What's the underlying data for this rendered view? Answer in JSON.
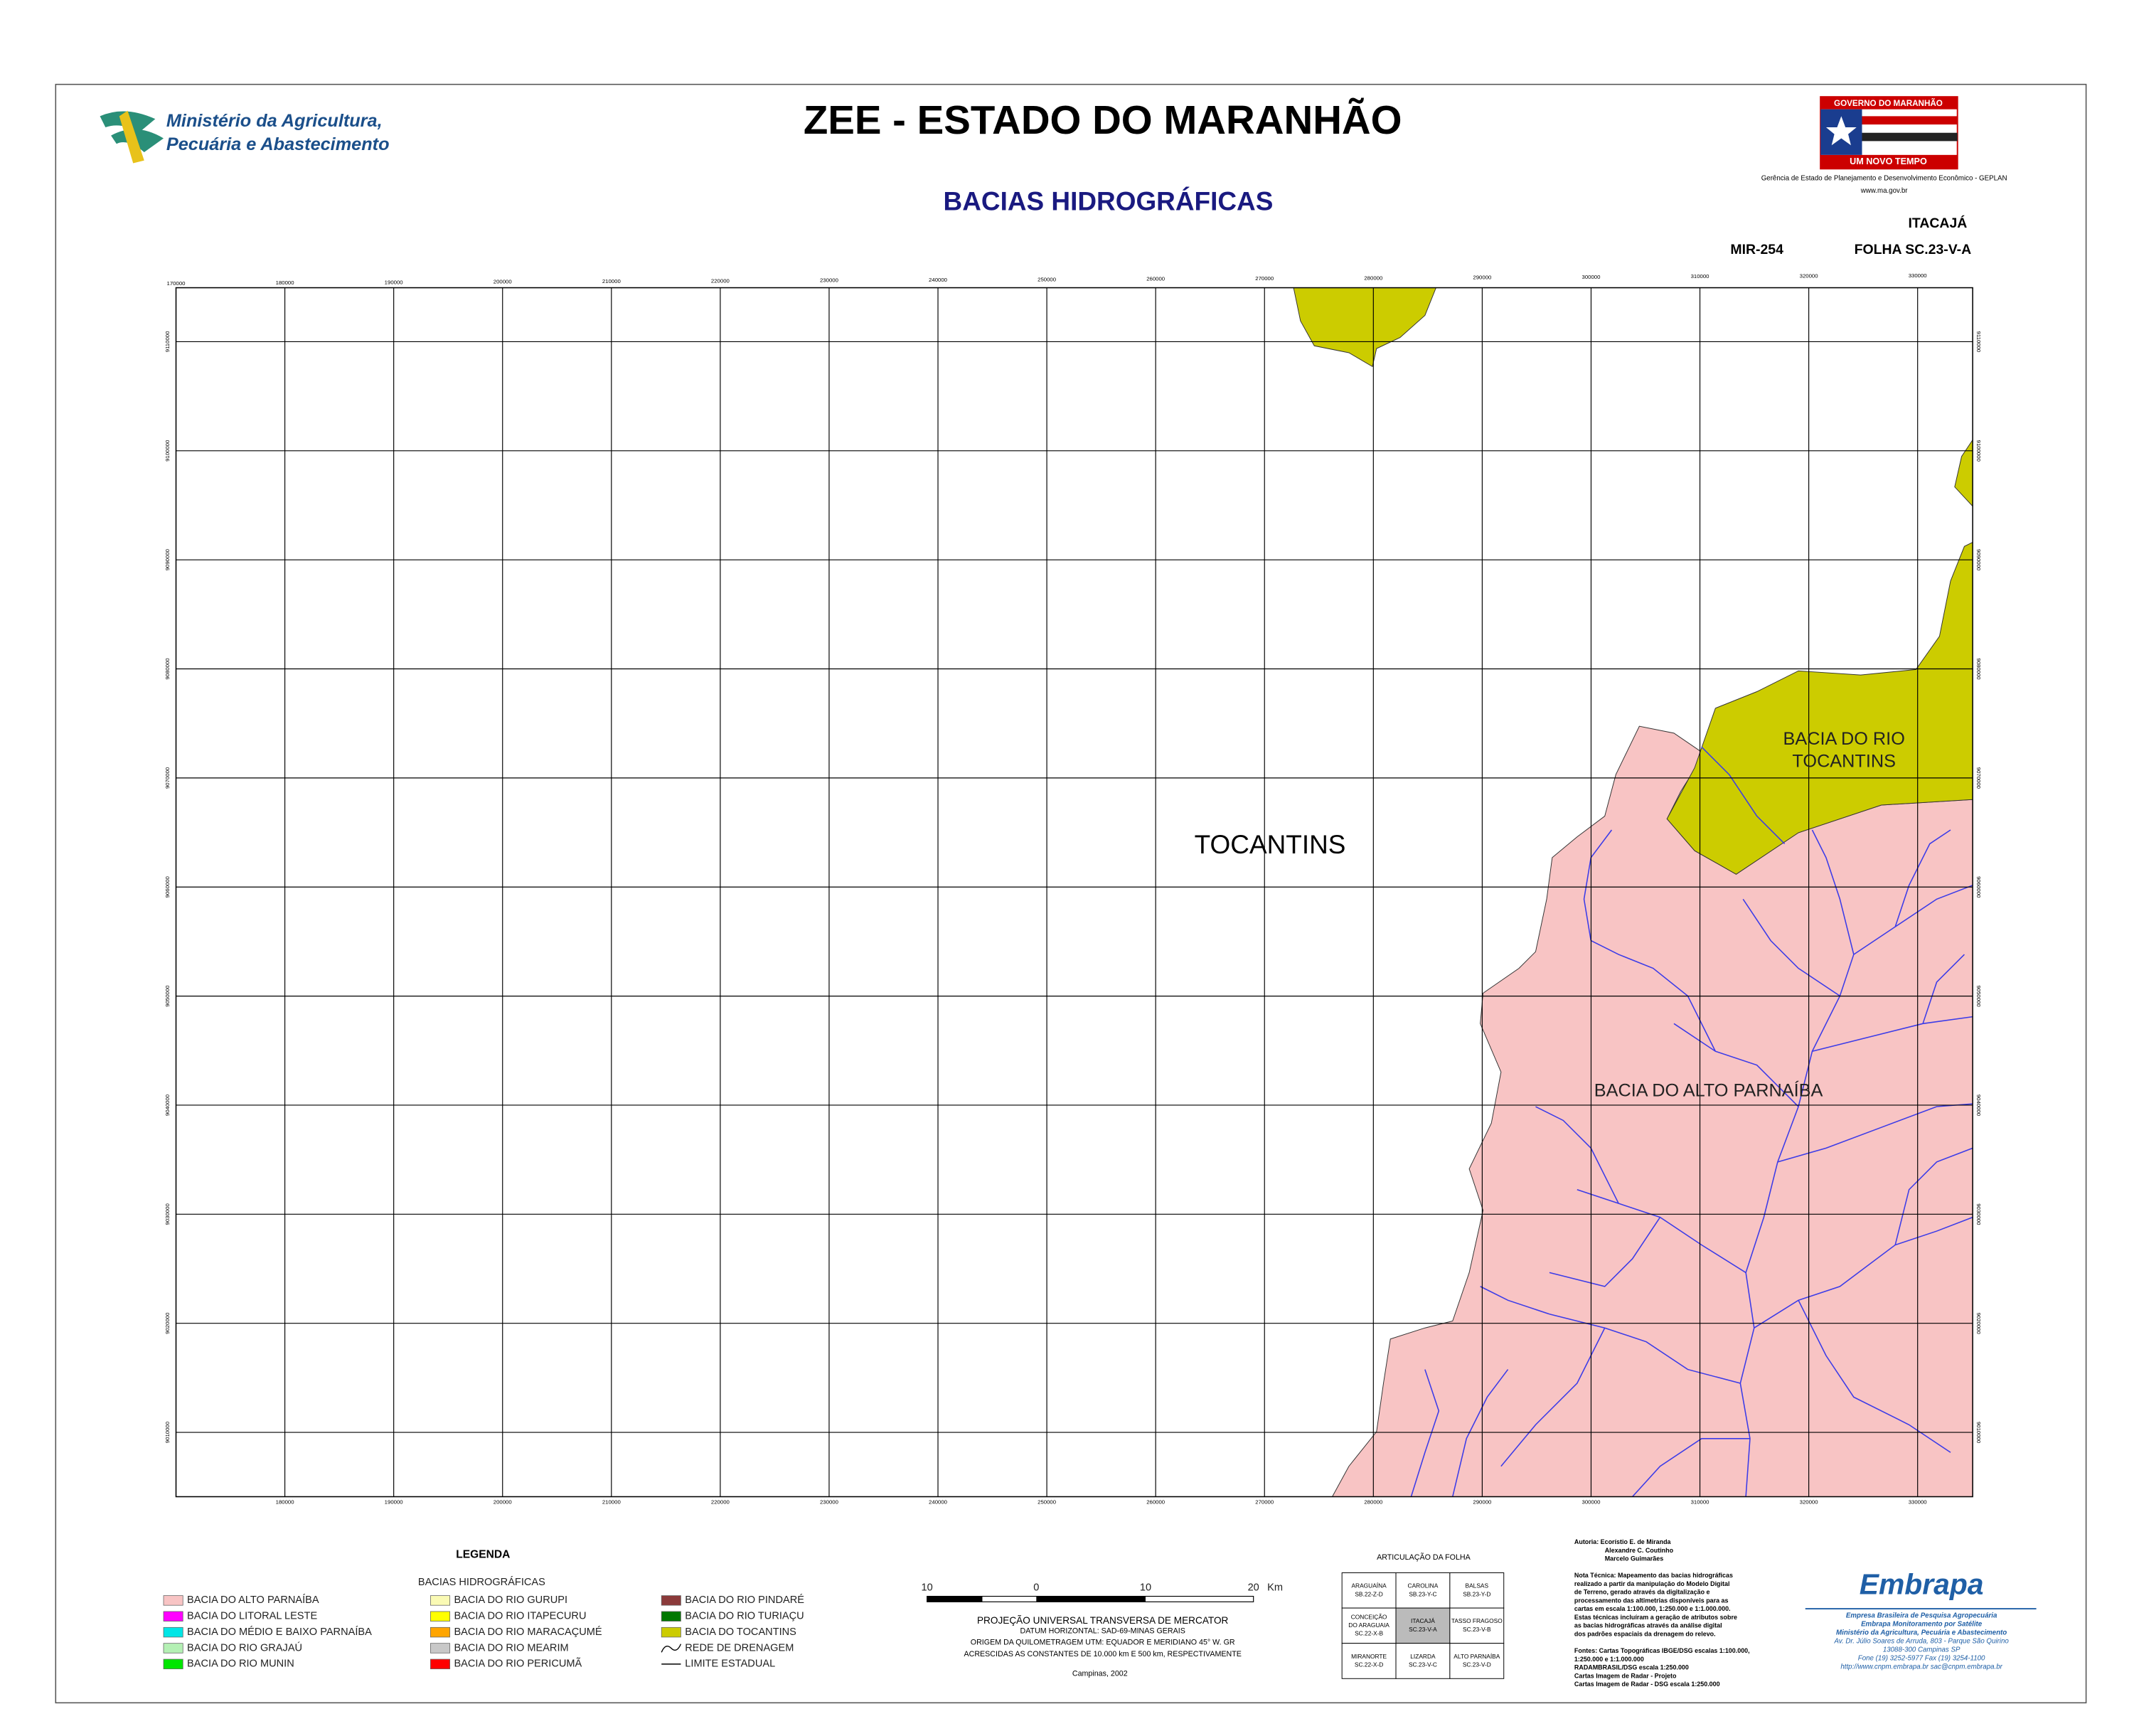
{
  "header": {
    "ministry_line1": "Ministério da Agricultura,",
    "ministry_line2": "Pecuária e Abastecimento",
    "title": "ZEE - ESTADO DO MARANHÃO",
    "subtitle": "BACIAS HIDROGRÁFICAS",
    "gov_top": "GOVERNO DO MARANHÃO",
    "gov_bottom": "UM NOVO TEMPO",
    "gov_agency": "Gerência de Estado de Planejamento e Desenvolvimento Econômico - GEPLAN",
    "gov_site": "www.ma.gov.br",
    "sheet_name": "ITACAJÁ",
    "mir": "MIR-254",
    "sheet_code": "FOLHA SC.23-V-A"
  },
  "map": {
    "x_labels_top": [
      170000,
      180000,
      190000,
      200000,
      210000,
      220000,
      230000,
      240000,
      250000,
      260000,
      270000,
      280000,
      290000,
      300000,
      310000,
      320000,
      330000
    ],
    "x_labels_bottom": [
      180000,
      190000,
      200000,
      210000,
      220000,
      230000,
      240000,
      250000,
      260000,
      270000,
      280000,
      290000,
      300000,
      310000,
      320000,
      330000
    ],
    "y_labels": [
      9110000,
      9100000,
      9090000,
      9080000,
      9070000,
      9060000,
      9050000,
      9040000,
      9030000,
      9020000,
      9010000
    ],
    "labels": {
      "state": "TOCANTINS",
      "tocantins_1": "BACIA DO RIO",
      "tocantins_2": "TOCANTINS",
      "parnaiba": "BACIA DO ALTO PARNAÍBA"
    },
    "colors": {
      "parnaiba": "#f8c4c4",
      "tocantins": "#cccc00",
      "river": "#3b3be8"
    }
  },
  "legend": {
    "title": "LEGENDA",
    "subtitle": "BACIAS HIDROGRÁFICAS",
    "items": [
      {
        "label": "BACIA DO ALTO PARNAÍBA",
        "color": "#f8c4c4"
      },
      {
        "label": "BACIA DO LITORAL LESTE",
        "color": "#ff00ff"
      },
      {
        "label": "BACIA DO MÉDIO E BAIXO PARNAÍBA",
        "color": "#00e6e6"
      },
      {
        "label": "BACIA DO RIO GRAJAÚ",
        "color": "#b4f0b4"
      },
      {
        "label": "BACIA DO RIO MUNIN",
        "color": "#00e600"
      },
      {
        "label": "BACIA DO RIO GURUPI",
        "color": "#fafab4"
      },
      {
        "label": "BACIA DO RIO ITAPECURU",
        "color": "#ffff00"
      },
      {
        "label": "BACIA DO RIO MARACAÇUMÉ",
        "color": "#ffa500"
      },
      {
        "label": "BACIA DO RIO MEARIM",
        "color": "#c8c8c8"
      },
      {
        "label": "BACIA DO RIO PERICUMÃ",
        "color": "#ff0000"
      },
      {
        "label": "BACIA DO RIO PINDARÉ",
        "color": "#8b3a3a"
      },
      {
        "label": "BACIA DO RIO TURIAÇU",
        "color": "#007800"
      },
      {
        "label": "BACIA DO TOCANTINS",
        "color": "#cccc00"
      }
    ],
    "drainage": "REDE DE DRENAGEM",
    "border": "LIMITE ESTADUAL"
  },
  "scale": {
    "ticks": [
      "10",
      "0",
      "10",
      "20"
    ],
    "unit": "Km",
    "lines": [
      "PROJEÇÃO UNIVERSAL TRANSVERSA DE MERCATOR",
      "DATUM HORIZONTAL: SAD-69-MINAS GERAIS",
      "ORIGEM DA QUILOMETRAGEM UTM: EQUADOR E MERIDIANO 45° W. GR",
      "ACRESCIDAS AS CONSTANTES DE 10.000 km E 500 km, RESPECTIVAMENTE"
    ],
    "place": "Campinas, 2002"
  },
  "articulation": {
    "title": "ARTICULAÇÃO DA FOLHA",
    "rows": [
      [
        [
          "ARAGUAÍNA",
          "SB.22-Z-D"
        ],
        [
          "CAROLINA",
          "SB.23-Y-C"
        ],
        [
          "BALSAS",
          "SB.23-Y-D"
        ]
      ],
      [
        [
          "CONCEIÇÃO",
          "DO ARAGUAIA",
          "SC.22-X-B"
        ],
        [
          "ITACAJÁ",
          "SC.23-V-A"
        ],
        [
          "TASSO FRAGOSO",
          "SC.23-V-B"
        ]
      ],
      [
        [
          "MIRANORTE",
          "SC.22-X-D"
        ],
        [
          "LIZARDA",
          "SC.23-V-C"
        ],
        [
          "ALTO PARNAÍBA",
          "SC.23-V-D"
        ]
      ]
    ]
  },
  "credits": {
    "lines": [
      "Autoria: Ecorístio E. de Miranda",
      "Alexandre C. Coutinho",
      "Marcelo Guimarães",
      "",
      "Nota Técnica: Mapeamento das bacias hidrográficas",
      "realizado a partir da manipulação do Modelo Digital",
      "de Terreno, gerado através da digitalização e",
      "processamento das altimetrias disponíveis para as",
      "cartas em escala 1:100.000, 1:250.000 e 1:1.000.000.",
      "Estas técnicas incluíram a geração de atributos sobre",
      "as bacias hidrográficas através da análise digital",
      "dos padrões espaciais da drenagem do relevo.",
      "",
      "Fontes: Cartas Topográficas IBGE/DSG escalas 1:100.000,",
      "1:250.000 e 1:1.000.000",
      "RADAMBRASIL/DSG escala 1:250.000",
      "Cartas Imagem de Radar - Projeto",
      "Cartas Imagem de Radar - DSG escala 1:250.000"
    ]
  },
  "embrapa": {
    "logo": "Embrapa",
    "lines": [
      "Empresa Brasileira de Pesquisa Agropecuária",
      "Embrapa Monitoramento por Satélite",
      "Ministério da Agricultura, Pecuária e Abastecimento",
      "Av. Dr. Júlio Soares de Arruda, 803 - Parque São Quirino",
      "13088-300 Campinas SP",
      "Fone (19) 3252-5977 Fax (19) 3254-1100",
      "http://www.cnpm.embrapa.br  sac@cnpm.embrapa.br"
    ]
  }
}
